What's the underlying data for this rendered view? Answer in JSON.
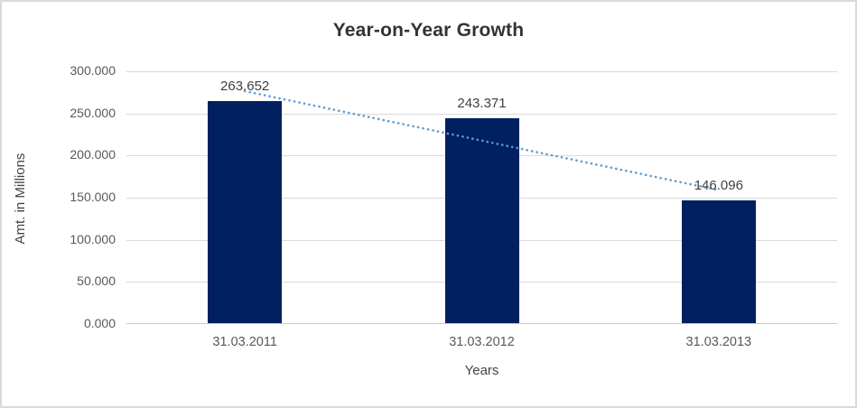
{
  "chart_data": {
    "type": "bar",
    "title": "Year-on-Year Growth",
    "categories": [
      "31.03.2011",
      "31.03.2012",
      "31.03.2013"
    ],
    "values": [
      263.652,
      243.371,
      146.096
    ],
    "data_labels": [
      "263.652",
      "243.371",
      "146.096"
    ],
    "xlabel": "Years",
    "ylabel": "Amt. in Millions",
    "ylim": [
      0,
      300
    ],
    "ytick_step": 50,
    "ytick_labels": [
      "0.000",
      "50.000",
      "100.000",
      "150.000",
      "200.000",
      "250.000",
      "300.000"
    ],
    "grid": true,
    "legend": "none",
    "bar_color": "#002060",
    "trendline": {
      "type": "linear",
      "style": "dotted",
      "color": "#5b9bd5"
    }
  },
  "colors": {
    "frame_border": "#d9d9d9",
    "gridline": "#d9d9d9",
    "axis_line": "#c9c9c9",
    "title_text": "#333333",
    "tick_text": "#595959",
    "data_label_text": "#404040"
  }
}
